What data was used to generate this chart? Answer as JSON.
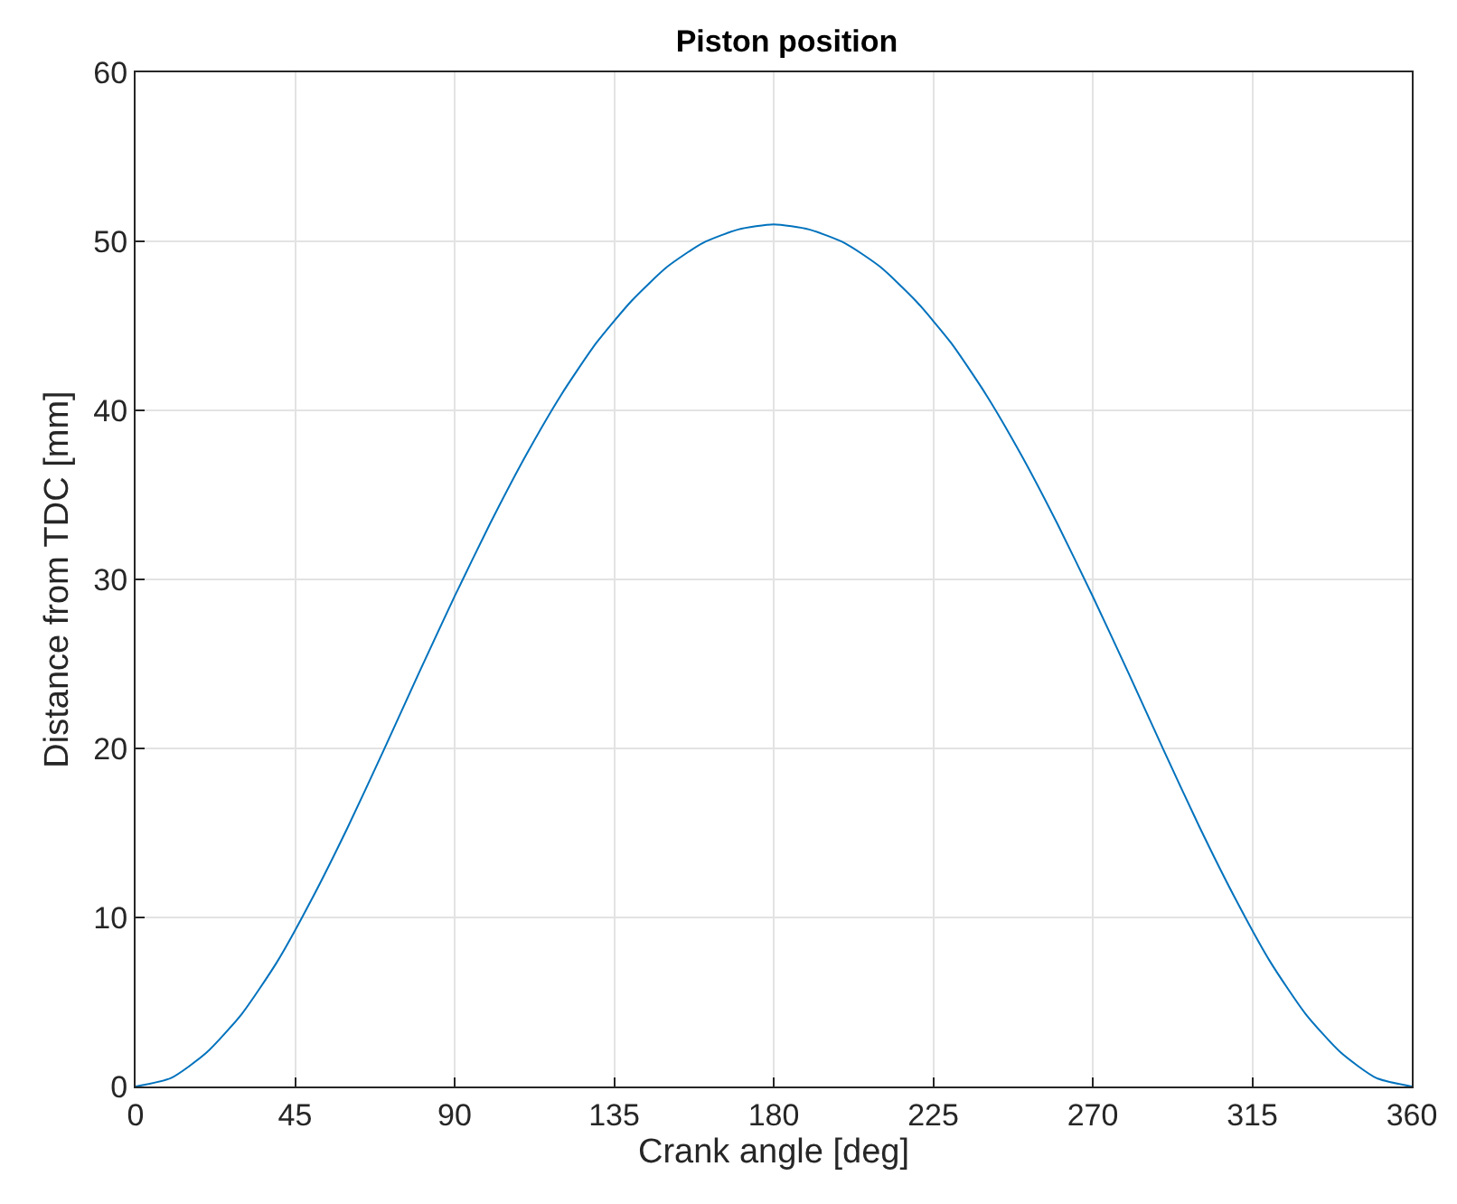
{
  "chart_data": {
    "type": "line",
    "title": "Piston position",
    "xlabel": "Crank angle [deg]",
    "ylabel": "Distance from TDC [mm]",
    "x": [
      0,
      10,
      20,
      30,
      40,
      50,
      60,
      70,
      80,
      90,
      100,
      110,
      120,
      130,
      140,
      150,
      160,
      170,
      180,
      190,
      200,
      210,
      220,
      230,
      240,
      250,
      260,
      270,
      280,
      290,
      300,
      310,
      320,
      330,
      340,
      350,
      360
    ],
    "series": [
      {
        "color": "#0072bd",
        "values": [
          0,
          0.5,
          2.0,
          4.3,
          7.4,
          11.2,
          15.4,
          19.9,
          24.5,
          29.0,
          33.3,
          37.3,
          40.9,
          44.0,
          46.5,
          48.5,
          49.9,
          50.7,
          51.0,
          50.7,
          49.9,
          48.5,
          46.5,
          44.0,
          40.9,
          37.3,
          33.3,
          29.0,
          24.5,
          19.9,
          15.4,
          11.2,
          7.4,
          4.3,
          2.0,
          0.5,
          0
        ]
      }
    ],
    "xlim": [
      0,
      360
    ],
    "xticks": [
      0,
      45,
      90,
      135,
      180,
      225,
      270,
      315,
      360
    ],
    "ylim": [
      0,
      60
    ],
    "yticks": [
      0,
      10,
      20,
      30,
      40,
      50,
      60
    ],
    "grid": true,
    "marker": "none",
    "line_style": "solid"
  }
}
